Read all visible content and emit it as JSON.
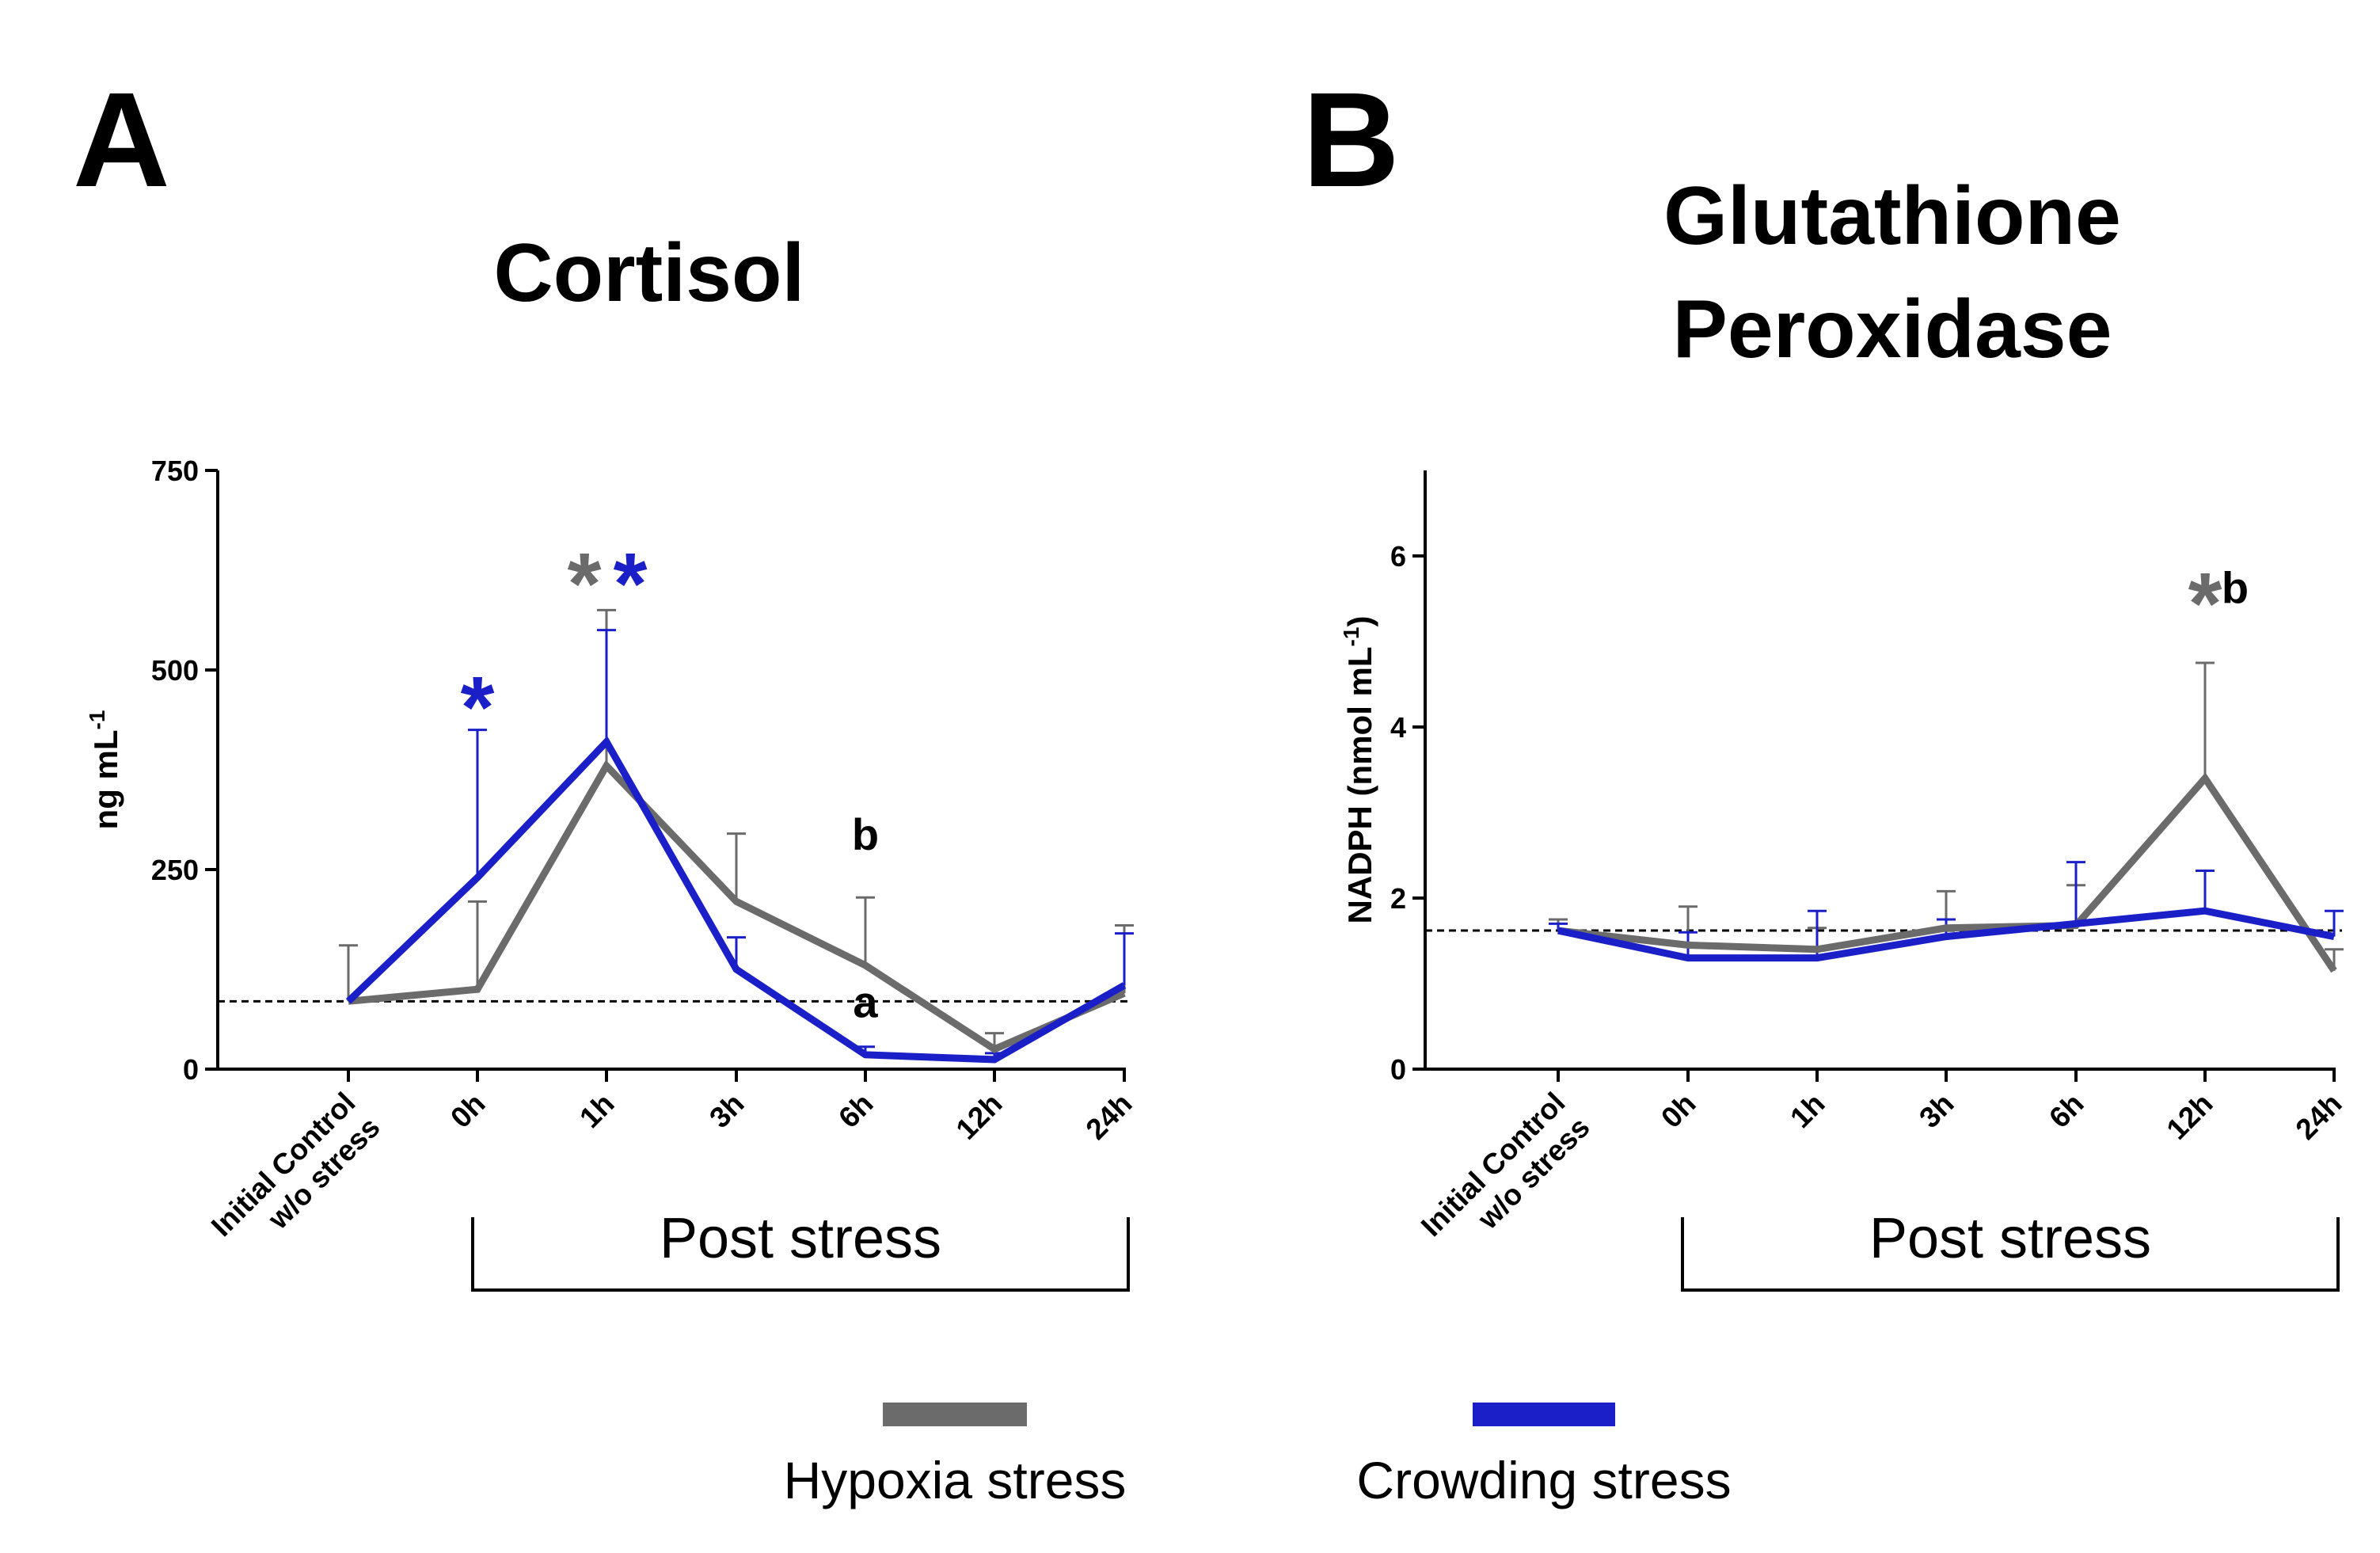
{
  "colors": {
    "hypoxia": "#6b6b6b",
    "crowding": "#1a1fc8",
    "axis": "#000000",
    "control_line": "#000000"
  },
  "legend": {
    "items": [
      {
        "label": "Hypoxia stress",
        "color": "#6b6b6b"
      },
      {
        "label": "Crowding stress",
        "color": "#1a1fc8"
      }
    ]
  },
  "chart_data": [
    {
      "panel": "A",
      "type": "line",
      "title": "Cortisol",
      "xlabel": "",
      "ylabel": "ng mL",
      "ylabel_superscript": "-1",
      "categories": [
        "Initial Control\nw/o stress",
        "0h",
        "1h",
        "3h",
        "6h",
        "12h",
        "24h"
      ],
      "ylim": [
        0,
        750
      ],
      "yticks": [
        0,
        250,
        500,
        750
      ],
      "control_level": 85,
      "bracket_label": "Post stress",
      "series": [
        {
          "name": "Hypoxia stress",
          "values": [
            85,
            100,
            380,
            210,
            130,
            25,
            95
          ],
          "error_upper": [
            155,
            210,
            575,
            295,
            215,
            45,
            180
          ]
        },
        {
          "name": "Crowding stress",
          "values": [
            85,
            240,
            410,
            125,
            18,
            12,
            105
          ],
          "error_upper": [
            85,
            425,
            550,
            165,
            28,
            20,
            170
          ]
        }
      ],
      "annotations": [
        {
          "text": "*",
          "category": 1,
          "value": 470,
          "series": "Crowding stress"
        },
        {
          "text": "*",
          "category": 2,
          "value": 625,
          "series": "Hypoxia stress"
        },
        {
          "text": "*",
          "category": 2,
          "value": 625,
          "series": "Crowding stress"
        },
        {
          "text": "b",
          "category": 4,
          "value": 275,
          "series": ""
        },
        {
          "text": "a",
          "category": 4,
          "value": 65,
          "series": ""
        }
      ]
    },
    {
      "panel": "B",
      "type": "line",
      "title": "Glutathione\nPeroxidase",
      "xlabel": "",
      "ylabel": "NADPH (nmol mL",
      "ylabel_superscript": "-1",
      "ylabel_tail": ")",
      "categories": [
        "Initial Control\nw/o stress",
        "0h",
        "1h",
        "3h",
        "6h",
        "12h",
        "24h"
      ],
      "ylim": [
        0,
        7
      ],
      "yticks": [
        0,
        2,
        4,
        6
      ],
      "control_level": 1.62,
      "bracket_label": "Post stress",
      "series": [
        {
          "name": "Hypoxia stress",
          "values": [
            1.62,
            1.45,
            1.4,
            1.65,
            1.68,
            3.4,
            1.15
          ],
          "error_upper": [
            1.75,
            1.9,
            1.65,
            2.08,
            2.15,
            4.75,
            1.4
          ]
        },
        {
          "name": "Crowding stress",
          "values": [
            1.62,
            1.3,
            1.3,
            1.55,
            1.7,
            1.85,
            1.55
          ],
          "error_upper": [
            1.7,
            1.6,
            1.85,
            1.75,
            2.42,
            2.32,
            1.85
          ]
        }
      ],
      "annotations": [
        {
          "text": "*",
          "category": 5,
          "value": 5.6,
          "series": "Hypoxia stress"
        },
        {
          "text": "b",
          "category": 5,
          "value": 5.45,
          "series": ""
        }
      ]
    }
  ]
}
